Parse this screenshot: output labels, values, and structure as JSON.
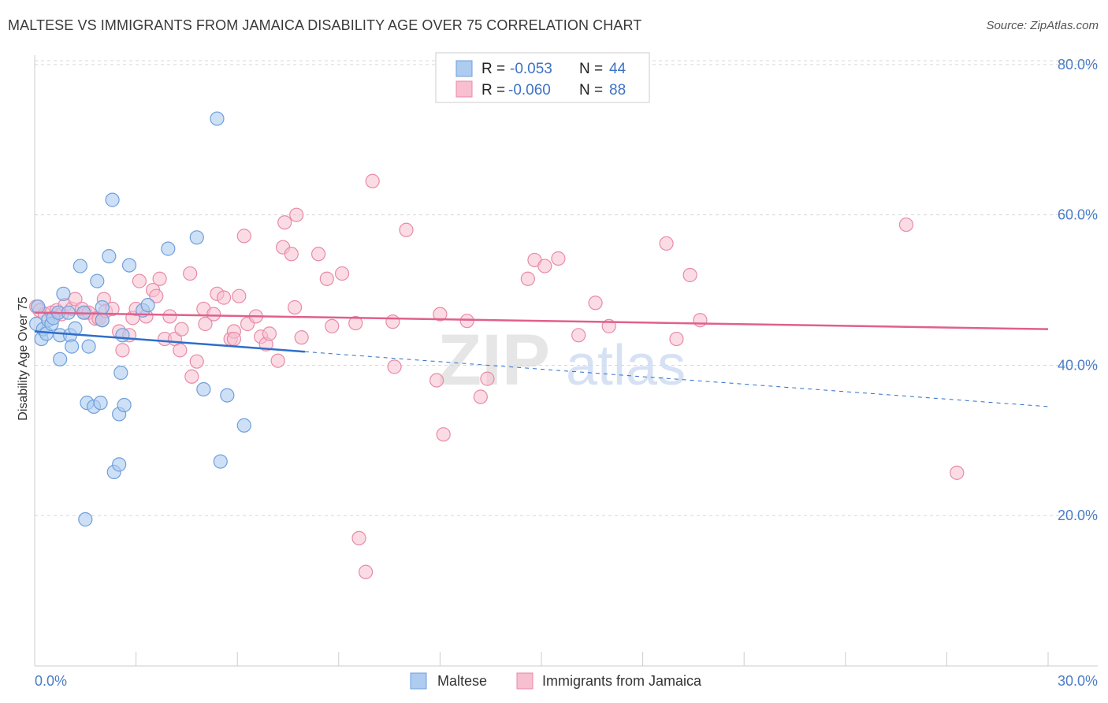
{
  "title": "MALTESE VS IMMIGRANTS FROM JAMAICA DISABILITY AGE OVER 75 CORRELATION CHART",
  "source": "Source: ZipAtlas.com",
  "watermark": {
    "zip": "ZIP",
    "atlas": "atlas"
  },
  "legend_box": {
    "rows": [
      {
        "r_label": "R =",
        "r_value": "-0.053",
        "n_label": "N =",
        "n_value": "44"
      },
      {
        "r_label": "R =",
        "r_value": "-0.060",
        "n_label": "N =",
        "n_value": "88"
      }
    ]
  },
  "bottom_legend": {
    "maltese": "Maltese",
    "jamaica": "Immigrants from Jamaica"
  },
  "colors": {
    "maltese_fill": "#aecbf0",
    "maltese_stroke": "#6f9fdc",
    "maltese_line": "#2d6fc9",
    "jamaica_fill": "#f7bfd0",
    "jamaica_stroke": "#e88aa8",
    "jamaica_line": "#e0608d",
    "grid": "#d8d8d8",
    "tick_label": "#4a7cc7"
  },
  "chart_data": {
    "type": "scatter",
    "title": "MALTESE VS IMMIGRANTS FROM JAMAICA DISABILITY AGE OVER 75 CORRELATION CHART",
    "xlabel": "",
    "ylabel": "Disability Age Over 75",
    "xlim": [
      0,
      30
    ],
    "ylim": [
      0,
      85
    ],
    "x_tick_labels": [
      "0.0%",
      "30.0%"
    ],
    "y_tick_values": [
      20,
      40,
      60,
      80
    ],
    "y_tick_labels": [
      "20.0%",
      "40.0%",
      "60.0%",
      "80.0%"
    ],
    "grid": true,
    "legend_position": "top-center",
    "series": [
      {
        "name": "Maltese",
        "r": -0.053,
        "n": 44,
        "trend": {
          "x0": 0.0,
          "y0": 44.5,
          "x1": 8.0,
          "y1": 41.8,
          "dashed_to_x": 30.0,
          "dashed_to_y": 34.5
        },
        "points": [
          [
            0.05,
            45.5
          ],
          [
            0.1,
            47.8
          ],
          [
            0.2,
            43.5
          ],
          [
            0.25,
            44.8
          ],
          [
            0.35,
            44.2
          ],
          [
            0.4,
            46.0
          ],
          [
            0.5,
            45.5
          ],
          [
            0.55,
            46.3
          ],
          [
            0.7,
            47.0
          ],
          [
            0.75,
            44.0
          ],
          [
            0.75,
            40.8
          ],
          [
            0.85,
            49.5
          ],
          [
            1.0,
            47.0
          ],
          [
            1.05,
            44.0
          ],
          [
            1.1,
            42.5
          ],
          [
            1.2,
            44.9
          ],
          [
            1.35,
            53.2
          ],
          [
            1.45,
            47.0
          ],
          [
            1.5,
            19.5
          ],
          [
            1.6,
            42.5
          ],
          [
            1.55,
            35.0
          ],
          [
            1.75,
            34.5
          ],
          [
            1.85,
            51.2
          ],
          [
            1.95,
            35.0
          ],
          [
            2.0,
            47.7
          ],
          [
            2.2,
            54.5
          ],
          [
            2.3,
            62.0
          ],
          [
            2.35,
            25.8
          ],
          [
            2.5,
            33.5
          ],
          [
            2.5,
            26.8
          ],
          [
            2.55,
            39.0
          ],
          [
            2.6,
            44.0
          ],
          [
            2.65,
            34.7
          ],
          [
            2.8,
            53.3
          ],
          [
            3.2,
            47.3
          ],
          [
            3.35,
            48.0
          ],
          [
            3.95,
            55.5
          ],
          [
            4.8,
            57.0
          ],
          [
            5.0,
            36.8
          ],
          [
            5.4,
            72.8
          ],
          [
            5.5,
            27.2
          ],
          [
            5.7,
            36.0
          ],
          [
            6.2,
            32.0
          ],
          [
            2.0,
            46.0
          ]
        ]
      },
      {
        "name": "Immigrants from Jamaica",
        "r": -0.06,
        "n": 88,
        "trend": {
          "x0": 0.0,
          "y0": 47.0,
          "x1": 30.0,
          "y1": 44.8
        },
        "points": [
          [
            0.05,
            47.8
          ],
          [
            0.15,
            47.3
          ],
          [
            0.3,
            46.8
          ],
          [
            0.5,
            47.0
          ],
          [
            0.65,
            47.3
          ],
          [
            0.8,
            46.8
          ],
          [
            0.9,
            48.0
          ],
          [
            1.1,
            47.5
          ],
          [
            1.2,
            48.8
          ],
          [
            1.4,
            47.5
          ],
          [
            1.5,
            47.0
          ],
          [
            1.6,
            47.0
          ],
          [
            1.8,
            46.2
          ],
          [
            1.9,
            46.2
          ],
          [
            2.0,
            46.0
          ],
          [
            2.05,
            48.8
          ],
          [
            2.1,
            47.2
          ],
          [
            2.3,
            47.5
          ],
          [
            2.5,
            44.5
          ],
          [
            2.6,
            42.0
          ],
          [
            2.8,
            44.0
          ],
          [
            2.9,
            46.3
          ],
          [
            3.0,
            47.5
          ],
          [
            3.1,
            51.2
          ],
          [
            3.3,
            46.5
          ],
          [
            3.5,
            50.0
          ],
          [
            3.6,
            49.2
          ],
          [
            3.7,
            51.5
          ],
          [
            3.85,
            43.5
          ],
          [
            4.0,
            46.5
          ],
          [
            4.15,
            43.5
          ],
          [
            4.3,
            42.0
          ],
          [
            4.35,
            44.8
          ],
          [
            4.6,
            52.2
          ],
          [
            4.65,
            38.5
          ],
          [
            4.8,
            40.5
          ],
          [
            5.0,
            47.5
          ],
          [
            5.05,
            45.5
          ],
          [
            5.3,
            46.8
          ],
          [
            5.4,
            49.5
          ],
          [
            5.6,
            49.0
          ],
          [
            5.8,
            43.5
          ],
          [
            5.9,
            44.5
          ],
          [
            5.9,
            43.5
          ],
          [
            6.05,
            49.2
          ],
          [
            6.2,
            57.2
          ],
          [
            6.3,
            45.5
          ],
          [
            6.55,
            46.5
          ],
          [
            6.7,
            43.8
          ],
          [
            6.85,
            42.8
          ],
          [
            6.95,
            44.2
          ],
          [
            7.2,
            40.6
          ],
          [
            7.35,
            55.7
          ],
          [
            7.4,
            59.0
          ],
          [
            7.6,
            54.8
          ],
          [
            7.75,
            60.0
          ],
          [
            7.7,
            47.7
          ],
          [
            7.9,
            43.7
          ],
          [
            8.4,
            54.8
          ],
          [
            8.65,
            51.5
          ],
          [
            8.8,
            45.2
          ],
          [
            9.1,
            52.2
          ],
          [
            9.5,
            45.6
          ],
          [
            9.6,
            17.0
          ],
          [
            10.0,
            64.5
          ],
          [
            9.8,
            12.5
          ],
          [
            10.6,
            45.8
          ],
          [
            10.65,
            39.8
          ],
          [
            11.0,
            58.0
          ],
          [
            12.0,
            46.8
          ],
          [
            12.1,
            30.8
          ],
          [
            11.9,
            38.0
          ],
          [
            12.8,
            45.9
          ],
          [
            13.2,
            35.8
          ],
          [
            13.4,
            38.2
          ],
          [
            14.6,
            51.5
          ],
          [
            14.8,
            54.0
          ],
          [
            15.1,
            53.2
          ],
          [
            15.5,
            54.2
          ],
          [
            16.1,
            44.0
          ],
          [
            16.6,
            48.3
          ],
          [
            17.0,
            45.2
          ],
          [
            18.7,
            56.2
          ],
          [
            19.0,
            43.5
          ],
          [
            19.4,
            52.0
          ],
          [
            19.7,
            46.0
          ],
          [
            25.8,
            58.7
          ],
          [
            27.3,
            25.7
          ]
        ]
      }
    ]
  }
}
